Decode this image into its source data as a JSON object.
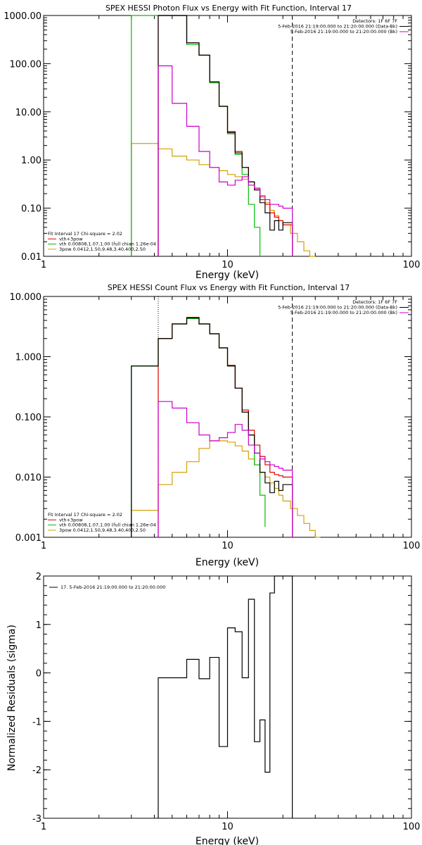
{
  "chart_data": [
    {
      "type": "line",
      "title": "SPEX HESSI Photon Flux vs Energy with Fit Function, Interval 17",
      "xlabel": "Energy (keV)",
      "ylabel": "",
      "xscale": "log",
      "yscale": "log",
      "xlim": [
        1,
        100
      ],
      "ylim": [
        0.01,
        1000
      ],
      "x_ticks": [
        {
          "v": 1,
          "label": "1"
        },
        {
          "v": 10,
          "label": "10"
        },
        {
          "v": 100,
          "label": "100"
        }
      ],
      "y_ticks": [
        {
          "v": 0.01,
          "label": "0.01"
        },
        {
          "v": 0.1,
          "label": "0.10"
        },
        {
          "v": 1,
          "label": "1.00"
        },
        {
          "v": 10,
          "label": "10.00"
        },
        {
          "v": 100,
          "label": "100.00"
        },
        {
          "v": 1000,
          "label": "1000.00"
        }
      ],
      "vlines": [
        {
          "x": 4.2,
          "style": "dotted"
        },
        {
          "x": 22.5,
          "style": "dashed"
        }
      ],
      "legend_top_right": [
        {
          "text": "Detectors: 1F 6F 7F",
          "color": "#000000"
        },
        {
          "text": "5-Feb-2016 21:19:00.000 to 21:20:00.000 (Data-Bk)",
          "color": "#000000"
        },
        {
          "text": "5-Feb-2016 21:19:00.000 to 21:20:00.000 (Bk)",
          "color": "#cc00cc"
        }
      ],
      "legend_bottom_left": [
        {
          "text": "Fit Interval 17   Chi-square = 2.02",
          "color": "#000000"
        },
        {
          "text": "vth+3pow",
          "color": "#e00000"
        },
        {
          "text": "vth 0.00808,1.07,1.00  (full chian 1.26e-04",
          "color": "#00c000"
        },
        {
          "text": "3pow 0.0412,1.50,9.48,3.40,400,2.50",
          "color": "#d4a000"
        }
      ],
      "series": [
        {
          "color": "#d4a000",
          "edges": [
            3,
            4.2,
            5,
            6,
            7,
            8,
            9,
            10,
            11,
            12,
            13,
            14,
            15,
            16,
            17,
            18,
            19,
            20,
            22,
            24,
            26,
            28,
            30
          ],
          "values": [
            2.2,
            1.7,
            1.2,
            1.0,
            0.8,
            0.7,
            0.6,
            0.5,
            0.45,
            0.4,
            0.3,
            0.24,
            0.17,
            0.13,
            0.09,
            0.07,
            0.055,
            0.045,
            0.03,
            0.02,
            0.013,
            0.01
          ]
        },
        {
          "color": "#00c000",
          "edges": [
            3,
            4.2,
            5,
            6,
            7,
            8,
            9,
            10,
            11,
            12,
            13,
            14,
            15
          ],
          "values": [
            1000,
            1000,
            1000,
            250,
            150,
            40,
            13,
            3.5,
            1.3,
            0.5,
            0.12,
            0.04,
            0.01
          ]
        },
        {
          "color": "#e00000",
          "edges": [
            4.2,
            5,
            6,
            7,
            8,
            9,
            10,
            11,
            12,
            13,
            14,
            15,
            16,
            17,
            18,
            19,
            20,
            22.5
          ],
          "values": [
            1000,
            1000,
            270,
            150,
            42,
            13,
            3.9,
            1.5,
            0.7,
            0.35,
            0.26,
            0.15,
            0.12,
            0.08,
            0.065,
            0.055,
            0.045
          ]
        },
        {
          "color": "#000000",
          "edges": [
            4.2,
            5,
            6,
            7,
            8,
            9,
            10,
            11,
            12,
            13,
            14,
            15,
            16,
            17,
            18,
            19,
            20,
            22.5
          ],
          "values": [
            1000,
            1000,
            270,
            150,
            42,
            13,
            3.7,
            1.4,
            0.7,
            0.35,
            0.24,
            0.13,
            0.08,
            0.035,
            0.055,
            0.035,
            0.05
          ]
        },
        {
          "color": "#cc00cc",
          "edges": [
            4.2,
            5,
            6,
            7,
            8,
            9,
            10,
            11,
            12,
            13,
            14,
            15,
            16,
            17,
            18,
            19,
            20,
            22.5
          ],
          "values": [
            90,
            15,
            5,
            1.5,
            0.7,
            0.35,
            0.3,
            0.38,
            0.45,
            0.3,
            0.26,
            0.18,
            0.15,
            0.12,
            0.12,
            0.11,
            0.1
          ]
        }
      ]
    },
    {
      "type": "line",
      "title": "SPEX HESSI Count Flux vs Energy with Fit Function, Interval 17",
      "xlabel": "Energy (keV)",
      "ylabel": "",
      "xscale": "log",
      "yscale": "log",
      "xlim": [
        1,
        100
      ],
      "ylim": [
        0.001,
        10
      ],
      "x_ticks": [
        {
          "v": 1,
          "label": "1"
        },
        {
          "v": 10,
          "label": "10"
        },
        {
          "v": 100,
          "label": "100"
        }
      ],
      "y_ticks": [
        {
          "v": 0.001,
          "label": "0.001"
        },
        {
          "v": 0.01,
          "label": "0.010"
        },
        {
          "v": 0.1,
          "label": "0.100"
        },
        {
          "v": 1,
          "label": "1.000"
        },
        {
          "v": 10,
          "label": "10.000"
        }
      ],
      "vlines": [
        {
          "x": 4.2,
          "style": "dotted"
        },
        {
          "x": 22.5,
          "style": "dashed"
        }
      ],
      "legend_top_right": [
        {
          "text": "Detectors: 1F 6F 7F",
          "color": "#000000"
        },
        {
          "text": "5-Feb-2016 21:19:00.000 to 21:20:00.000 (Data-Bk)",
          "color": "#000000"
        },
        {
          "text": "5-Feb-2016 21:19:00.000 to 21:20:00.000 (Bk)",
          "color": "#cc00cc"
        }
      ],
      "legend_bottom_left": [
        {
          "text": "Fit Interval 17   Chi-square = 2.02",
          "color": "#000000"
        },
        {
          "text": "vth+3pow",
          "color": "#e00000"
        },
        {
          "text": "vth 0.00808,1.07,1.00  (full chian 1.26e-04",
          "color": "#00c000"
        },
        {
          "text": "3pow 0.0412,1.50,9.48,3.40,400,2.50",
          "color": "#d4a000"
        }
      ],
      "series": [
        {
          "color": "#d4a000",
          "edges": [
            3,
            4.2,
            5,
            6,
            7,
            8,
            9,
            10,
            11,
            12,
            13,
            14,
            15,
            16,
            17,
            18,
            19,
            20,
            22,
            24,
            26,
            28,
            30,
            32
          ],
          "values": [
            0.0028,
            0.0075,
            0.012,
            0.018,
            0.03,
            0.04,
            0.04,
            0.038,
            0.033,
            0.027,
            0.02,
            0.016,
            0.012,
            0.01,
            0.008,
            0.0065,
            0.005,
            0.004,
            0.003,
            0.0023,
            0.0017,
            0.0013,
            0.001
          ]
        },
        {
          "color": "#00c000",
          "edges": [
            3,
            4.2,
            5,
            6,
            7,
            8,
            9,
            10,
            11,
            12,
            13,
            14,
            15,
            16
          ],
          "values": [
            0.7,
            2.0,
            3.5,
            4.3,
            3.5,
            2.4,
            1.4,
            0.7,
            0.3,
            0.12,
            0.05,
            0.016,
            0.005,
            0.0015
          ]
        },
        {
          "color": "#e00000",
          "edges": [
            4.2,
            5,
            6,
            7,
            8,
            9,
            10,
            11,
            12,
            13,
            14,
            15,
            16,
            17,
            18,
            19,
            20,
            22.5
          ],
          "values": [
            2.0,
            3.5,
            4.5,
            3.5,
            2.4,
            1.4,
            0.72,
            0.3,
            0.13,
            0.06,
            0.034,
            0.022,
            0.016,
            0.012,
            0.011,
            0.0105,
            0.01
          ]
        },
        {
          "color": "#000000",
          "edges": [
            3,
            4.2,
            5,
            6,
            7,
            8,
            9,
            10,
            11,
            12,
            13,
            14,
            15,
            16,
            17,
            18,
            19,
            20,
            22.5
          ],
          "values": [
            0.7,
            2.0,
            3.5,
            4.4,
            3.5,
            2.4,
            1.4,
            0.7,
            0.3,
            0.12,
            0.05,
            0.025,
            0.012,
            0.008,
            0.0055,
            0.0085,
            0.006,
            0.0075
          ]
        },
        {
          "color": "#cc00cc",
          "edges": [
            4.2,
            5,
            6,
            7,
            8,
            9,
            10,
            11,
            12,
            13,
            14,
            15,
            16,
            17,
            18,
            19,
            20,
            22.5
          ],
          "values": [
            0.18,
            0.14,
            0.08,
            0.05,
            0.04,
            0.045,
            0.055,
            0.075,
            0.06,
            0.034,
            0.025,
            0.02,
            0.018,
            0.016,
            0.015,
            0.014,
            0.013
          ]
        }
      ]
    },
    {
      "type": "line",
      "title": "",
      "xlabel": "Energy (keV)",
      "ylabel": "Normalized Residuals (sigma)",
      "xscale": "log",
      "yscale": "linear",
      "xlim": [
        1,
        100
      ],
      "ylim": [
        -3,
        2
      ],
      "x_ticks": [
        {
          "v": 1,
          "label": "1"
        },
        {
          "v": 10,
          "label": "10"
        },
        {
          "v": 100,
          "label": "100"
        }
      ],
      "y_ticks": [
        {
          "v": -3,
          "label": "-3"
        },
        {
          "v": -2,
          "label": "-2"
        },
        {
          "v": -1,
          "label": "-1"
        },
        {
          "v": 0,
          "label": "0"
        },
        {
          "v": 1,
          "label": "1"
        },
        {
          "v": 2,
          "label": "2"
        }
      ],
      "vlines": [],
      "legend_top_left": [
        {
          "text": "17.  5-Feb-2016 21:19:00.000 to 21:20:00.000",
          "color": "#000000"
        }
      ],
      "legend_bottom_left": [],
      "series": [
        {
          "color": "#000000",
          "edges": [
            4.2,
            5,
            6,
            7,
            8,
            9,
            10,
            11,
            12,
            13,
            14,
            15,
            16,
            17,
            18,
            19,
            20,
            22.5
          ],
          "values": [
            -0.1,
            -0.1,
            0.28,
            -0.12,
            0.32,
            -1.52,
            0.93,
            0.85,
            -0.1,
            1.52,
            -1.42,
            -0.97,
            -2.05,
            1.65,
            2.0,
            2.0,
            2.0
          ],
          "start_y": -3,
          "end_y": -3
        }
      ]
    }
  ]
}
